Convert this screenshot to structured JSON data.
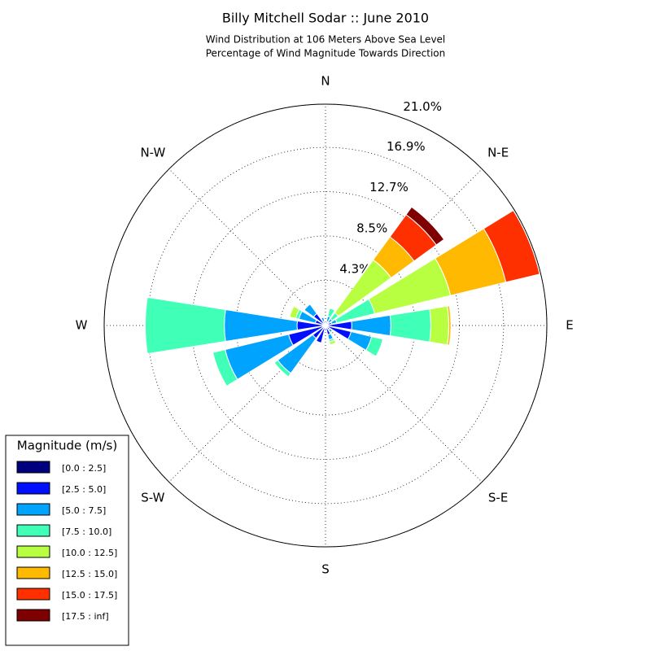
{
  "chart_data": {
    "type": "windrose",
    "title": "Billy Mitchell Sodar :: June 2010",
    "subtitle": [
      "Wind Distribution at 106 Meters Above Sea Level",
      "Percentage of Wind Magnitude Towards Direction"
    ],
    "categories": [
      "N",
      null,
      "N-E",
      null,
      "E",
      null,
      "S-E",
      null,
      "S",
      null,
      "S-W",
      null,
      "W",
      null,
      "N-W",
      null
    ],
    "rlim": [
      0,
      21
    ],
    "rticks": [
      {
        "value": 4.3,
        "label": "4.3%"
      },
      {
        "value": 8.5,
        "label": "8.5%"
      },
      {
        "value": 12.7,
        "label": "12.7%"
      },
      {
        "value": 16.9,
        "label": "16.9%"
      },
      {
        "value": 21.0,
        "label": "21.0%"
      }
    ],
    "grid": true,
    "legend": "lower left",
    "legend_title": "Magnitude (m/s)",
    "series": [
      {
        "name": "[0.0 : 2.5]",
        "color": "#00007f",
        "values": [
          0.1,
          0.1,
          0.1,
          0.1,
          0.2,
          0.2,
          0.1,
          0.1,
          0.1,
          0.2,
          0.2,
          0.3,
          0.3,
          0.2,
          0.2,
          0.1
        ]
      },
      {
        "name": "[2.5 : 5.0]",
        "color": "#0010ff",
        "values": [
          0.2,
          0.3,
          0.3,
          0.5,
          2.3,
          2.3,
          0.4,
          0.8,
          0.4,
          1.5,
          1.3,
          3.3,
          2.4,
          0.8,
          1.2,
          0.3
        ]
      },
      {
        "name": "[5.0 : 7.5]",
        "color": "#00a4ff",
        "values": [
          0,
          0.5,
          0.4,
          0.5,
          3.7,
          2.0,
          0.3,
          0.5,
          0,
          0,
          4.1,
          6.2,
          6.9,
          1.6,
          1.1,
          0.4
        ]
      },
      {
        "name": "[7.5 : 10.0]",
        "color": "#40ffb7",
        "values": [
          0,
          0.8,
          0.7,
          3.7,
          3.8,
          1.1,
          0,
          0.2,
          0,
          0,
          0.4,
          1.2,
          7.5,
          0.3,
          0,
          0
        ]
      },
      {
        "name": "[10.0 : 12.5]",
        "color": "#b7ff40",
        "values": [
          0,
          0,
          6.2,
          7.4,
          1.7,
          0,
          0,
          0.3,
          0,
          0,
          0,
          0,
          0,
          0.6,
          0,
          0
        ]
      },
      {
        "name": "[12.5 : 15.0]",
        "color": "#ffb900",
        "values": [
          0,
          0,
          2.7,
          5.4,
          0.2,
          0,
          0,
          0,
          0,
          0,
          0,
          0,
          0,
          0,
          0,
          0
        ]
      },
      {
        "name": "[15.0 : 17.5]",
        "color": "#ff3000",
        "values": [
          0,
          0,
          2.6,
          3.3,
          0,
          0,
          0,
          0,
          0,
          0,
          0,
          0,
          0,
          0,
          0,
          0
        ]
      },
      {
        "name": "[17.5 : inf]",
        "color": "#7f0000",
        "values": [
          0,
          0,
          0.9,
          0,
          0,
          0,
          0,
          0,
          0,
          0,
          0,
          0,
          0,
          0,
          0,
          0
        ]
      }
    ]
  }
}
